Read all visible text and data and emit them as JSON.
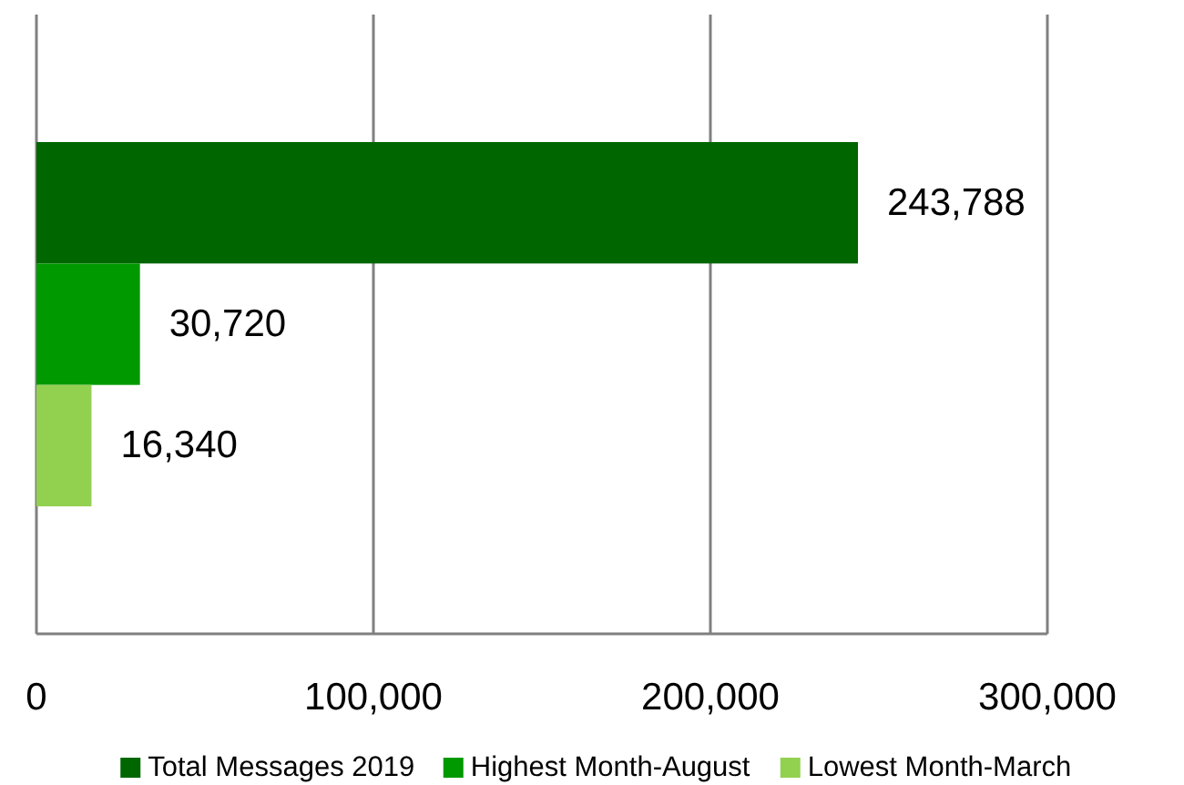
{
  "chart_data": {
    "type": "bar",
    "orientation": "horizontal",
    "categories": [
      null
    ],
    "series": [
      {
        "name": "Total Messages 2019",
        "color": "#006600",
        "values": [
          243788
        ],
        "value_labels": [
          "243,788"
        ]
      },
      {
        "name": "Highest Month-August",
        "color": "#009900",
        "values": [
          30720
        ],
        "value_labels": [
          "30,720"
        ]
      },
      {
        "name": "Lowest Month-March",
        "color": "#92d050",
        "values": [
          16340
        ],
        "value_labels": [
          "16,340"
        ]
      }
    ],
    "xlim": [
      0,
      300000
    ],
    "xticks": [
      {
        "value": 0,
        "label": "0"
      },
      {
        "value": 100000,
        "label": "100,000"
      },
      {
        "value": 200000,
        "label": "200,000"
      },
      {
        "value": 300000,
        "label": "300,000"
      }
    ],
    "grid": "x",
    "legend": "bottom"
  }
}
